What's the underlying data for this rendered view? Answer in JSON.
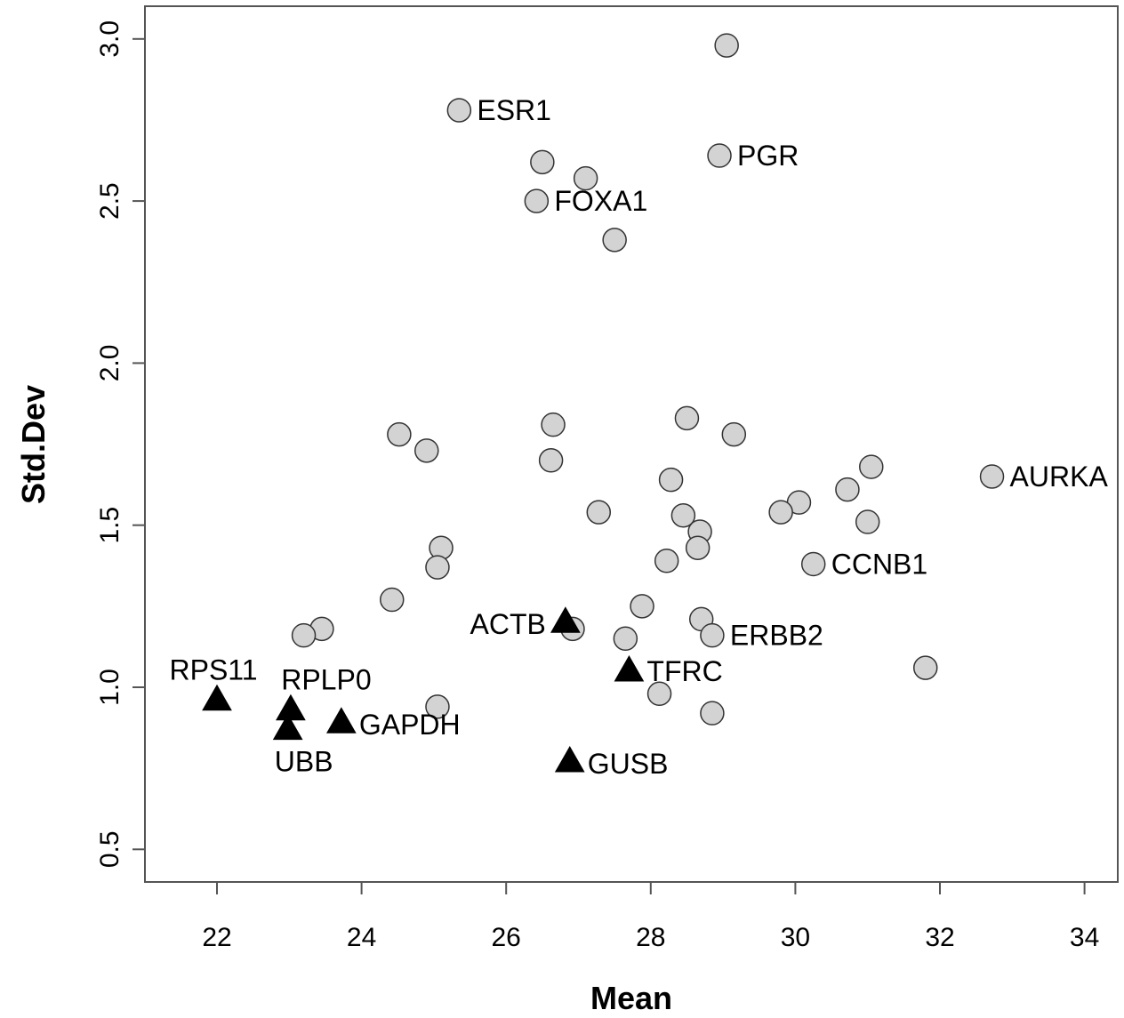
{
  "chart_data": {
    "type": "scatter",
    "title": "",
    "xlabel": "Mean",
    "ylabel": "Std.Dev",
    "xlim": [
      21.2,
      34.5
    ],
    "ylim": [
      0.4,
      3.1
    ],
    "xticks": [
      22,
      24,
      26,
      28,
      30,
      32,
      34
    ],
    "yticks": [
      0.5,
      1.0,
      1.5,
      2.0,
      2.5,
      3.0
    ],
    "xtick_labels": [
      "22",
      "24",
      "26",
      "28",
      "30",
      "32",
      "34"
    ],
    "ytick_labels": [
      "0.5",
      "1.0",
      "1.5",
      "2.0",
      "2.5",
      "3.0"
    ],
    "grid": false,
    "colors": {
      "circle_fill": "#d3d3d3",
      "circle_stroke": "#333333",
      "triangle_fill": "#000000"
    },
    "series": [
      {
        "marker": "circle",
        "points": [
          {
            "x": 29.05,
            "y": 2.98,
            "label": ""
          },
          {
            "x": 25.35,
            "y": 2.78,
            "label": "ESR1"
          },
          {
            "x": 28.95,
            "y": 2.64,
            "label": "PGR"
          },
          {
            "x": 26.5,
            "y": 2.62,
            "label": ""
          },
          {
            "x": 27.1,
            "y": 2.57,
            "label": ""
          },
          {
            "x": 26.42,
            "y": 2.5,
            "label": "FOXA1"
          },
          {
            "x": 27.5,
            "y": 2.38,
            "label": ""
          },
          {
            "x": 28.5,
            "y": 1.83,
            "label": ""
          },
          {
            "x": 26.65,
            "y": 1.81,
            "label": ""
          },
          {
            "x": 24.52,
            "y": 1.78,
            "label": ""
          },
          {
            "x": 29.15,
            "y": 1.78,
            "label": ""
          },
          {
            "x": 24.9,
            "y": 1.73,
            "label": ""
          },
          {
            "x": 26.62,
            "y": 1.7,
            "label": ""
          },
          {
            "x": 31.05,
            "y": 1.68,
            "label": ""
          },
          {
            "x": 32.72,
            "y": 1.65,
            "label": "AURKA"
          },
          {
            "x": 28.28,
            "y": 1.64,
            "label": ""
          },
          {
            "x": 30.72,
            "y": 1.61,
            "label": ""
          },
          {
            "x": 30.05,
            "y": 1.57,
            "label": ""
          },
          {
            "x": 27.28,
            "y": 1.54,
            "label": ""
          },
          {
            "x": 29.8,
            "y": 1.54,
            "label": ""
          },
          {
            "x": 28.45,
            "y": 1.53,
            "label": ""
          },
          {
            "x": 31.0,
            "y": 1.51,
            "label": ""
          },
          {
            "x": 28.68,
            "y": 1.48,
            "label": ""
          },
          {
            "x": 25.1,
            "y": 1.43,
            "label": ""
          },
          {
            "x": 28.65,
            "y": 1.43,
            "label": ""
          },
          {
            "x": 28.22,
            "y": 1.39,
            "label": ""
          },
          {
            "x": 30.25,
            "y": 1.38,
            "label": "CCNB1"
          },
          {
            "x": 25.05,
            "y": 1.37,
            "label": ""
          },
          {
            "x": 24.42,
            "y": 1.27,
            "label": ""
          },
          {
            "x": 27.88,
            "y": 1.25,
            "label": ""
          },
          {
            "x": 28.7,
            "y": 1.21,
            "label": ""
          },
          {
            "x": 23.45,
            "y": 1.18,
            "label": ""
          },
          {
            "x": 26.92,
            "y": 1.18,
            "label": ""
          },
          {
            "x": 23.2,
            "y": 1.16,
            "label": ""
          },
          {
            "x": 28.85,
            "y": 1.16,
            "label": "ERBB2"
          },
          {
            "x": 27.65,
            "y": 1.15,
            "label": ""
          },
          {
            "x": 31.8,
            "y": 1.06,
            "label": ""
          },
          {
            "x": 28.12,
            "y": 0.98,
            "label": ""
          },
          {
            "x": 25.05,
            "y": 0.94,
            "label": ""
          },
          {
            "x": 28.85,
            "y": 0.92,
            "label": ""
          }
        ]
      },
      {
        "marker": "triangle",
        "points": [
          {
            "x": 26.82,
            "y": 1.2,
            "label": "ACTB"
          },
          {
            "x": 27.7,
            "y": 1.05,
            "label": "TFRC"
          },
          {
            "x": 22.0,
            "y": 0.96,
            "label": "RPS11"
          },
          {
            "x": 23.02,
            "y": 0.93,
            "label": "RPLP0"
          },
          {
            "x": 23.72,
            "y": 0.89,
            "label": "GAPDH"
          },
          {
            "x": 22.98,
            "y": 0.87,
            "label": "UBB"
          },
          {
            "x": 26.88,
            "y": 0.77,
            "label": "GUSB"
          }
        ]
      }
    ]
  }
}
